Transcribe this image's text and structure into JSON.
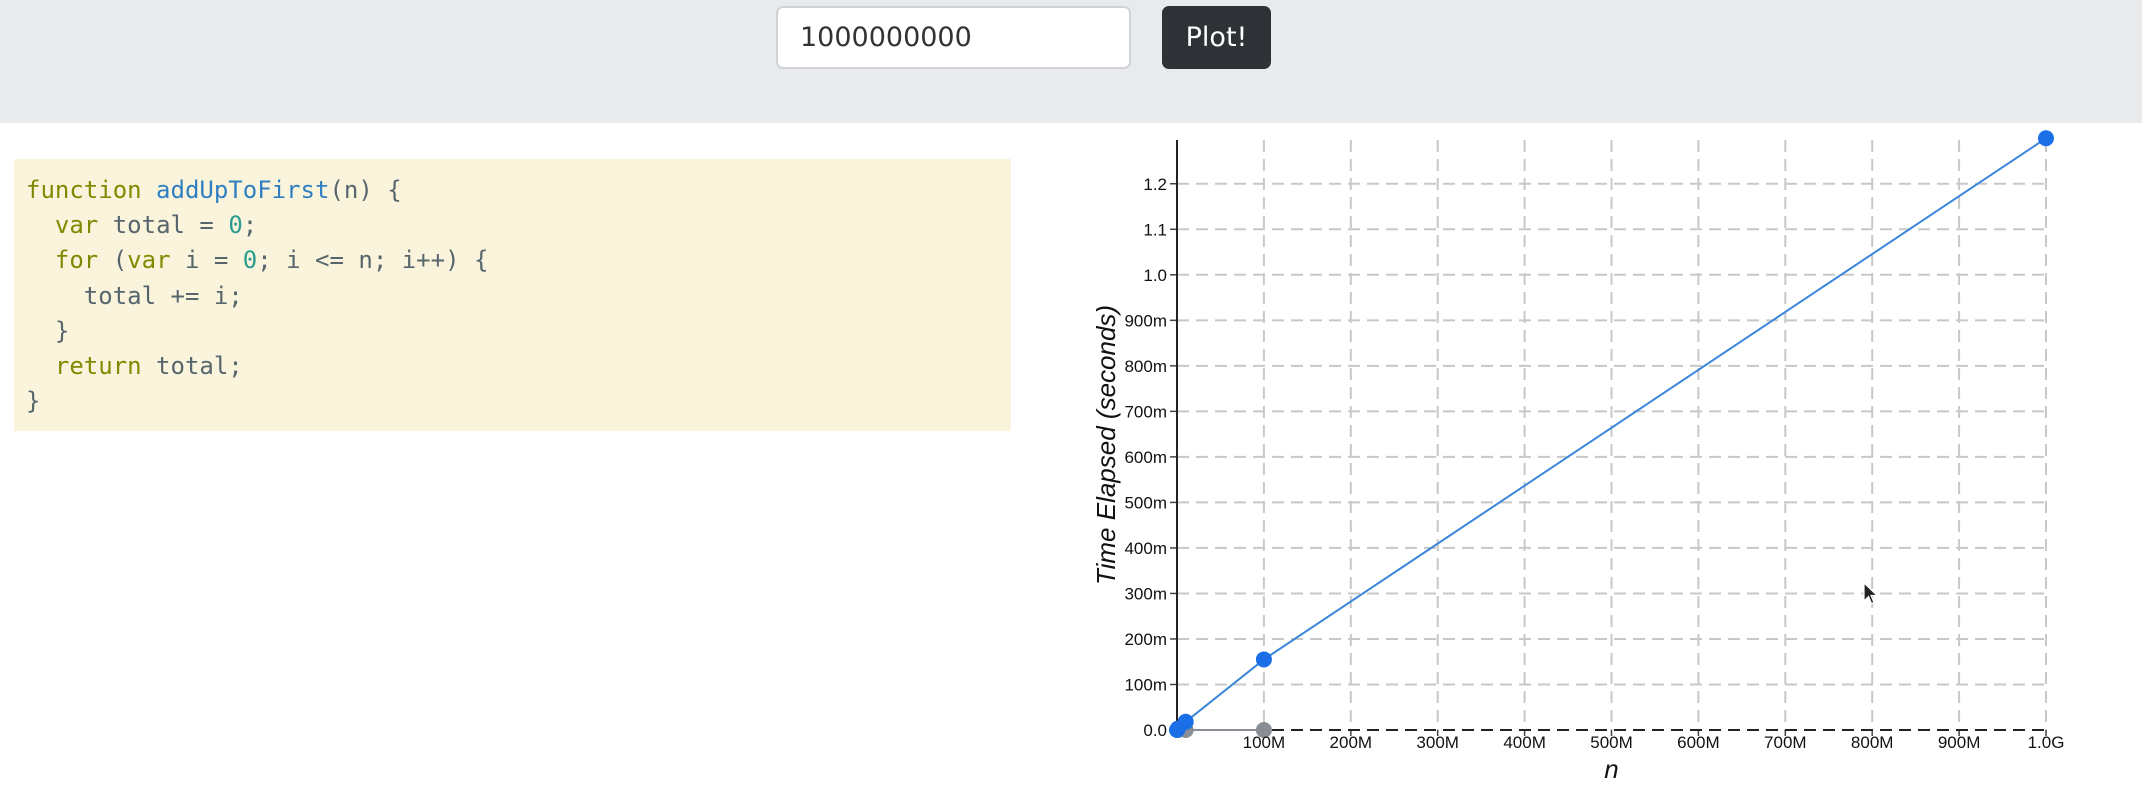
{
  "toolbar": {
    "input_value": "1000000000",
    "plot_label": "Plot!"
  },
  "code": {
    "lines": [
      [
        {
          "t": "function",
          "c": "kw"
        },
        {
          "t": " ",
          "c": ""
        },
        {
          "t": "addUpToFirst",
          "c": "fn"
        },
        {
          "t": "(n) {",
          "c": ""
        }
      ],
      [
        {
          "t": "  ",
          "c": ""
        },
        {
          "t": "var",
          "c": "kw"
        },
        {
          "t": " total = ",
          "c": ""
        },
        {
          "t": "0",
          "c": "num"
        },
        {
          "t": ";",
          "c": ""
        }
      ],
      [
        {
          "t": "  ",
          "c": ""
        },
        {
          "t": "for",
          "c": "kw"
        },
        {
          "t": " (",
          "c": ""
        },
        {
          "t": "var",
          "c": "kw"
        },
        {
          "t": " i = ",
          "c": ""
        },
        {
          "t": "0",
          "c": "num"
        },
        {
          "t": "; i <= n; i++) {",
          "c": ""
        }
      ],
      [
        {
          "t": "    total += i;",
          "c": ""
        }
      ],
      [
        {
          "t": "  }",
          "c": ""
        }
      ],
      [
        {
          "t": "  ",
          "c": ""
        },
        {
          "t": "return",
          "c": "kw"
        },
        {
          "t": " total;",
          "c": ""
        }
      ],
      [
        {
          "t": "}",
          "c": ""
        }
      ]
    ]
  },
  "chart_data": {
    "type": "scatter",
    "xlabel": "n",
    "ylabel": "Time Elapsed (seconds)",
    "x_ticks": [
      "100M",
      "200M",
      "300M",
      "400M",
      "500M",
      "600M",
      "700M",
      "800M",
      "900M",
      "1.0G"
    ],
    "y_ticks": [
      "0.0",
      "100m",
      "200m",
      "300m",
      "400m",
      "500m",
      "600m",
      "700m",
      "800m",
      "900m",
      "1.0",
      "1.1",
      "1.2"
    ],
    "xlim": [
      0,
      1000000000
    ],
    "ylim": [
      0,
      1.3
    ],
    "grid": true,
    "series": [
      {
        "color": "#1a6fe6",
        "connected": true,
        "points": [
          [
            0,
            0
          ],
          [
            1000000,
            0.003
          ],
          [
            10000000,
            0.018
          ],
          [
            100000000,
            0.155
          ],
          [
            1000000000,
            1.3
          ]
        ]
      },
      {
        "color": "#888e94",
        "connected": true,
        "points": [
          [
            1000000,
            0
          ],
          [
            10000000,
            0
          ],
          [
            100000000,
            0
          ]
        ]
      }
    ]
  }
}
